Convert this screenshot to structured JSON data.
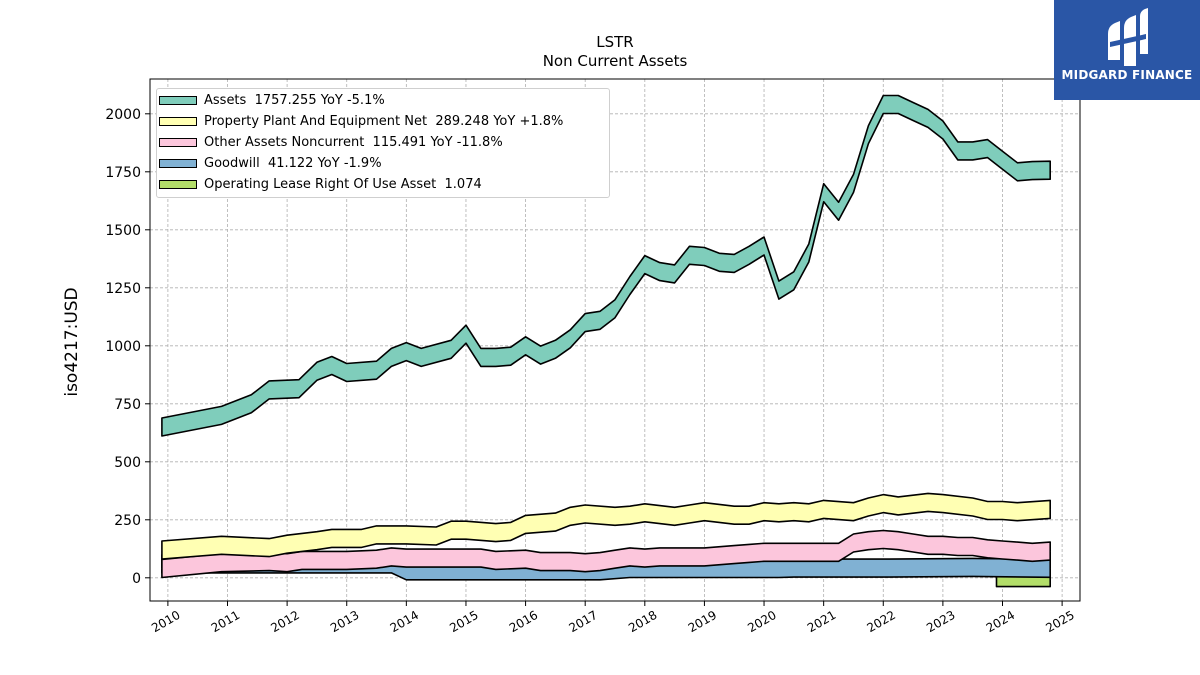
{
  "logo": {
    "text": "MIDGARD FINANCE"
  },
  "chart_data": {
    "type": "line",
    "title": "LSTR",
    "subtitle": "Non Current  Assets",
    "ylabel": "iso4217:USD",
    "xlabel": "",
    "xlim": [
      2009.7,
      2025.3
    ],
    "ylim": [
      -100,
      2150
    ],
    "xticks": [
      "2010",
      "2011",
      "2012",
      "2013",
      "2014",
      "2015",
      "2016",
      "2017",
      "2018",
      "2019",
      "2020",
      "2021",
      "2022",
      "2023",
      "2024",
      "2025"
    ],
    "yticks": [
      "0",
      "250",
      "500",
      "750",
      "1000",
      "1250",
      "1500",
      "1750",
      "2000"
    ],
    "grid": true,
    "legend_position": "top-left",
    "series": [
      {
        "name": "Assets",
        "legend": "Assets  1757.255 YoY -5.1%",
        "color": "#7fcdbb",
        "x": [
          2009.9,
          2010.9,
          2011.4,
          2011.7,
          2012.2,
          2012.5,
          2012.75,
          2013.0,
          2013.5,
          2013.75,
          2014.0,
          2014.25,
          2014.75,
          2015.0,
          2015.25,
          2015.5,
          2015.75,
          2016.0,
          2016.25,
          2016.5,
          2016.75,
          2017.0,
          2017.25,
          2017.5,
          2017.75,
          2018.0,
          2018.25,
          2018.5,
          2018.75,
          2019.0,
          2019.25,
          2019.5,
          2019.75,
          2020.0,
          2020.25,
          2020.5,
          2020.75,
          2021.0,
          2021.25,
          2021.5,
          2021.75,
          2022.0,
          2022.25,
          2022.5,
          2022.75,
          2023.0,
          2023.25,
          2023.5,
          2023.75,
          2024.0,
          2024.25,
          2024.5,
          2024.8
        ],
        "values": [
          650,
          700,
          750,
          810,
          815,
          890,
          915,
          885,
          895,
          950,
          975,
          950,
          985,
          1050,
          950,
          950,
          955,
          1000,
          960,
          985,
          1030,
          1100,
          1110,
          1160,
          1260,
          1350,
          1320,
          1310,
          1390,
          1385,
          1360,
          1355,
          1390,
          1430,
          1240,
          1280,
          1400,
          1660,
          1580,
          1700,
          1910,
          2040,
          2040,
          2010,
          1980,
          1930,
          1840,
          1840,
          1850,
          1800,
          1750,
          1755,
          1757
        ]
      },
      {
        "name": "Property Plant And Equipment Net",
        "legend": "Property Plant And Equipment Net  289.248 YoY +1.8%",
        "color": "#ffffb3",
        "x": [
          2009.9,
          2010.9,
          2011.7,
          2012.0,
          2012.5,
          2012.75,
          2013.25,
          2013.5,
          2014.0,
          2014.5,
          2014.75,
          2015.0,
          2015.5,
          2015.75,
          2016.0,
          2016.5,
          2016.75,
          2017.0,
          2017.5,
          2017.75,
          2018.0,
          2018.5,
          2018.75,
          2019.0,
          2019.5,
          2019.75,
          2020.0,
          2020.25,
          2020.5,
          2020.75,
          2021.0,
          2021.5,
          2021.75,
          2022.0,
          2022.25,
          2022.75,
          2023.0,
          2023.5,
          2023.75,
          2024.0,
          2024.25,
          2024.8
        ],
        "values": [
          120,
          140,
          130,
          145,
          160,
          170,
          170,
          185,
          185,
          180,
          205,
          205,
          195,
          200,
          230,
          240,
          265,
          275,
          265,
          270,
          280,
          265,
          275,
          285,
          270,
          270,
          285,
          280,
          285,
          280,
          295,
          285,
          305,
          320,
          310,
          325,
          320,
          305,
          290,
          290,
          285,
          295
        ]
      },
      {
        "name": "Other Assets Noncurrent",
        "legend": "Other Assets Noncurrent  115.491 YoY -11.8%",
        "color": "#fcc6dc",
        "x": [
          2009.9,
          2010.9,
          2011.7,
          2012.0,
          2012.25,
          2012.75,
          2013.0,
          2013.5,
          2013.75,
          2014.0,
          2014.75,
          2015.25,
          2015.5,
          2016.0,
          2016.25,
          2016.75,
          2017.0,
          2017.25,
          2017.5,
          2017.75,
          2018.0,
          2018.25,
          2018.75,
          2019.0,
          2019.5,
          2019.75,
          2020.0,
          2020.5,
          2021.0,
          2021.25,
          2021.5,
          2021.75,
          2022.0,
          2022.25,
          2022.5,
          2022.75,
          2023.0,
          2023.25,
          2023.5,
          2023.75,
          2024.0,
          2024.25,
          2024.5,
          2024.8
        ],
        "values": [
          40,
          65,
          70,
          65,
          75,
          75,
          75,
          80,
          90,
          85,
          85,
          85,
          75,
          80,
          70,
          70,
          65,
          70,
          80,
          90,
          85,
          90,
          90,
          90,
          100,
          105,
          110,
          110,
          110,
          110,
          150,
          160,
          165,
          160,
          150,
          140,
          140,
          135,
          135,
          125,
          120,
          115,
          110,
          115
        ]
      },
      {
        "name": "Goodwill",
        "legend": "Goodwill  41.122 YoY -1.9%",
        "color": "#80b1d3",
        "x": [
          2009.9,
          2013.75,
          2014.0,
          2017.25,
          2017.75,
          2019.0,
          2020.25,
          2020.5,
          2022.0,
          2023.5,
          2024.8
        ],
        "values": [
          60,
          60,
          30,
          30,
          40,
          40,
          40,
          42,
          42,
          45,
          41
        ]
      },
      {
        "name": "Operating Lease Right Of Use Asset",
        "legend": "Operating Lease Right Of Use Asset  1.074",
        "color": "#b3de69",
        "x": [
          2023.9,
          2024.8
        ],
        "values": [
          1.074,
          1.074
        ]
      }
    ]
  }
}
